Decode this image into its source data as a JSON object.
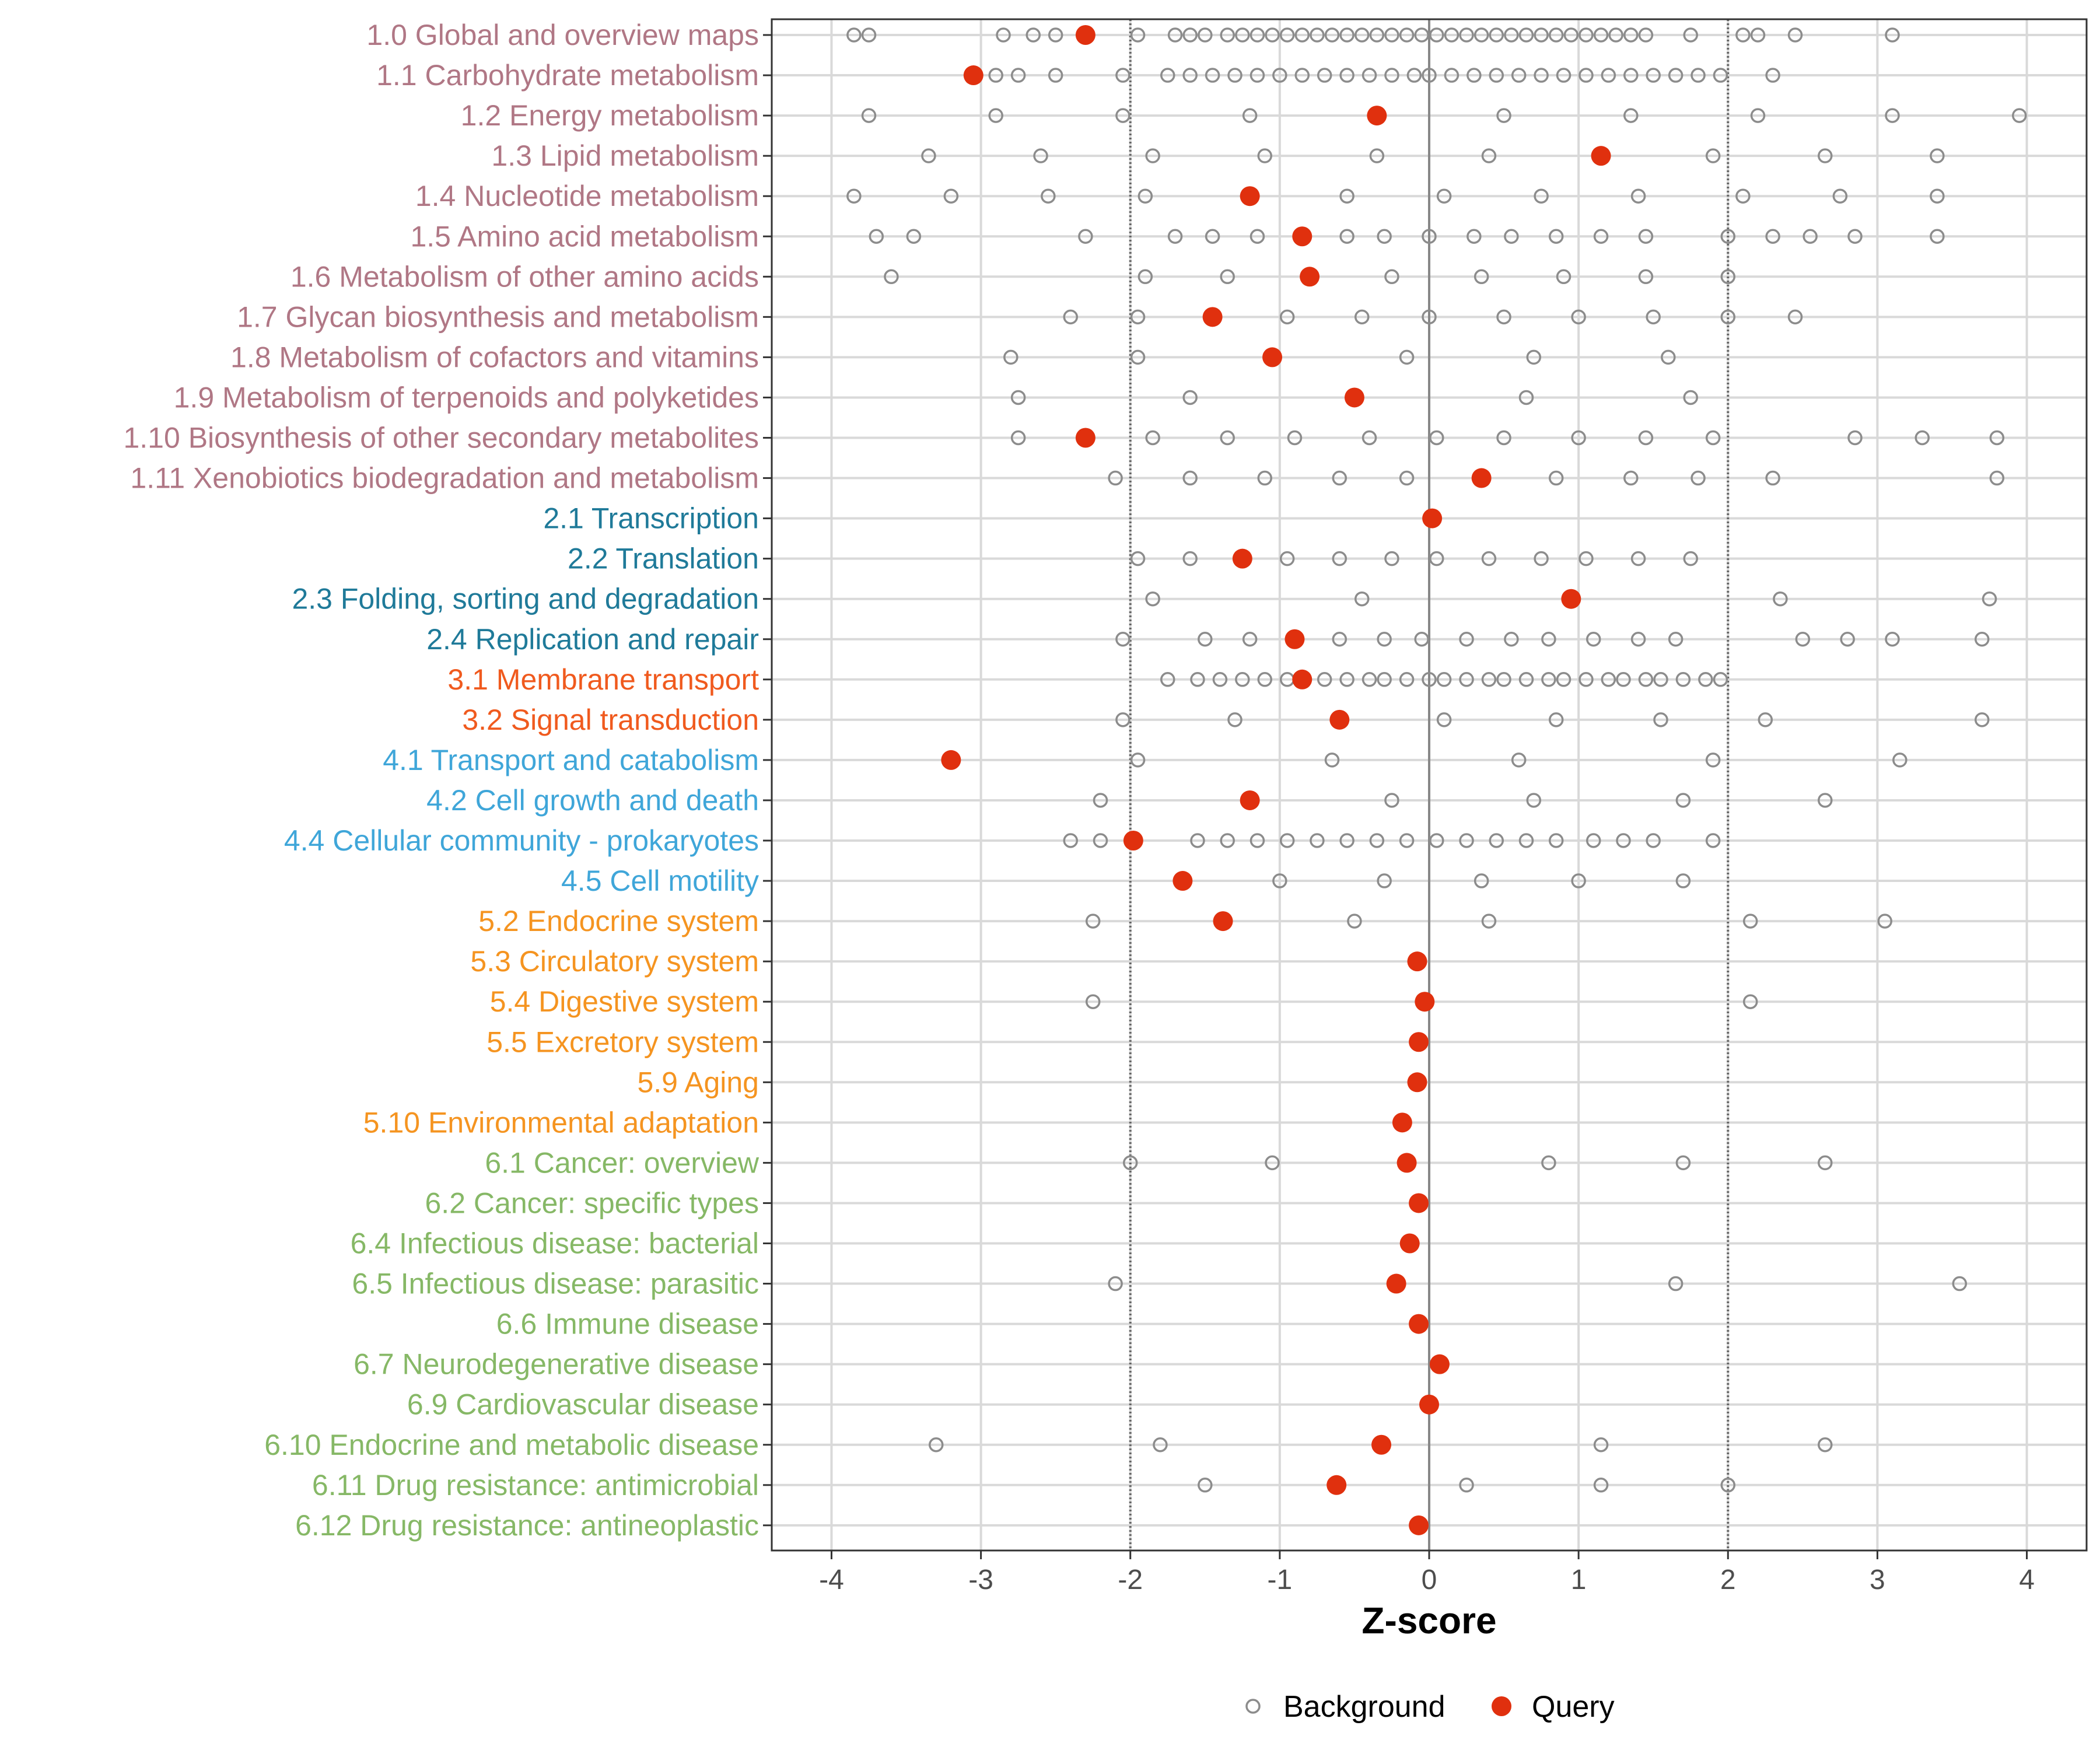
{
  "chart_data": {
    "type": "scatter",
    "xlabel": "Z-score",
    "xlim": [
      -4.4,
      4.4
    ],
    "x_ticks": [
      "-4",
      "-3",
      "-2",
      "-1",
      "0",
      "1",
      "2",
      "3",
      "4"
    ],
    "reference_lines": [
      -2,
      0,
      2
    ],
    "grid": true,
    "legend": {
      "position": "bottom",
      "entries": [
        {
          "name": "Background",
          "marker": "open-circle",
          "color": "#8c8c8c"
        },
        {
          "name": "Query",
          "marker": "filled-circle",
          "color": "#e0300e"
        }
      ]
    },
    "group_colors": {
      "1": "#b07785",
      "2": "#1f7a99",
      "3": "#f05a1e",
      "4": "#3fa6d9",
      "5": "#f59420",
      "6": "#86b866"
    },
    "categories": [
      {
        "label": "1.0 Global and overview maps",
        "group": "1",
        "query": -2.3,
        "background": [
          -3.85,
          -3.75,
          -2.85,
          -2.65,
          -2.5,
          -2.3,
          -1.95,
          -1.7,
          -1.6,
          -1.5,
          -1.35,
          -1.25,
          -1.15,
          -1.05,
          -0.95,
          -0.85,
          -0.75,
          -0.65,
          -0.55,
          -0.45,
          -0.35,
          -0.25,
          -0.15,
          -0.05,
          0.05,
          0.15,
          0.25,
          0.35,
          0.45,
          0.55,
          0.65,
          0.75,
          0.85,
          0.95,
          1.05,
          1.15,
          1.25,
          1.35,
          1.45,
          1.75,
          2.1,
          2.2,
          2.45,
          3.1
        ]
      },
      {
        "label": "1.1 Carbohydrate metabolism",
        "group": "1",
        "query": -3.05,
        "background": [
          -2.9,
          -2.75,
          -2.5,
          -2.05,
          -1.75,
          -1.6,
          -1.45,
          -1.3,
          -1.15,
          -1.0,
          -0.85,
          -0.7,
          -0.55,
          -0.4,
          -0.25,
          -0.1,
          0.0,
          0.15,
          0.3,
          0.45,
          0.6,
          0.75,
          0.9,
          1.05,
          1.2,
          1.35,
          1.5,
          1.65,
          1.8,
          1.95,
          2.3
        ]
      },
      {
        "label": "1.2 Energy metabolism",
        "group": "1",
        "query": -0.35,
        "background": [
          -3.75,
          -2.9,
          -2.05,
          -1.2,
          0.5,
          1.35,
          2.2,
          3.1,
          3.95
        ]
      },
      {
        "label": "1.3 Lipid metabolism",
        "group": "1",
        "query": 1.15,
        "background": [
          -3.35,
          -2.6,
          -1.85,
          -1.1,
          -0.35,
          0.4,
          1.9,
          2.65,
          3.4
        ]
      },
      {
        "label": "1.4 Nucleotide metabolism",
        "group": "1",
        "query": -1.2,
        "background": [
          -3.85,
          -3.2,
          -2.55,
          -1.9,
          -0.55,
          0.1,
          0.75,
          1.4,
          2.1,
          2.75,
          3.4
        ]
      },
      {
        "label": "1.5 Amino acid metabolism",
        "group": "1",
        "query": -0.85,
        "background": [
          -3.7,
          -3.45,
          -2.3,
          -1.7,
          -1.45,
          -1.15,
          -0.55,
          -0.3,
          0.0,
          0.3,
          0.55,
          0.85,
          1.15,
          1.45,
          2.0,
          2.3,
          2.55,
          2.85,
          3.4
        ]
      },
      {
        "label": "1.6 Metabolism of other amino acids",
        "group": "1",
        "query": -0.8,
        "background": [
          -3.6,
          -1.9,
          -1.35,
          -0.25,
          0.35,
          0.9,
          1.45,
          2.0
        ]
      },
      {
        "label": "1.7 Glycan biosynthesis and metabolism",
        "group": "1",
        "query": -1.45,
        "background": [
          -2.4,
          -1.95,
          -0.95,
          -0.45,
          0.0,
          0.5,
          1.0,
          1.5,
          2.0,
          2.45
        ]
      },
      {
        "label": "1.8 Metabolism of cofactors and vitamins",
        "group": "1",
        "query": -1.05,
        "background": [
          -2.8,
          -1.95,
          -0.15,
          0.7,
          1.6
        ]
      },
      {
        "label": "1.9 Metabolism of terpenoids and polyketides",
        "group": "1",
        "query": -0.5,
        "background": [
          -2.75,
          -1.6,
          0.65,
          1.75
        ]
      },
      {
        "label": "1.10 Biosynthesis of other secondary metabolites",
        "group": "1",
        "query": -2.3,
        "background": [
          -2.75,
          -1.85,
          -1.35,
          -0.9,
          -0.4,
          0.05,
          0.5,
          1.0,
          1.45,
          1.9,
          2.85,
          3.3,
          3.8
        ]
      },
      {
        "label": "1.11 Xenobiotics biodegradation and metabolism",
        "group": "1",
        "query": 0.35,
        "background": [
          -2.1,
          -1.6,
          -1.1,
          -0.6,
          -0.15,
          0.85,
          1.35,
          1.8,
          2.3,
          3.8
        ]
      },
      {
        "label": "2.1 Transcription",
        "group": "2",
        "query": 0.02,
        "background": []
      },
      {
        "label": "2.2 Translation",
        "group": "2",
        "query": -1.25,
        "background": [
          -1.95,
          -1.6,
          -0.95,
          -0.6,
          -0.25,
          0.05,
          0.4,
          0.75,
          1.05,
          1.4,
          1.75
        ]
      },
      {
        "label": "2.3 Folding, sorting and degradation",
        "group": "2",
        "query": 0.95,
        "background": [
          -1.85,
          -0.45,
          2.35,
          3.75
        ]
      },
      {
        "label": "2.4 Replication and repair",
        "group": "2",
        "query": -0.9,
        "background": [
          -2.05,
          -1.5,
          -1.2,
          -0.6,
          -0.3,
          -0.05,
          0.25,
          0.55,
          0.8,
          1.1,
          1.4,
          1.65,
          2.5,
          2.8,
          3.1,
          3.7
        ]
      },
      {
        "label": "3.1 Membrane transport",
        "group": "3",
        "query": -0.85,
        "background": [
          -1.75,
          -1.55,
          -1.4,
          -1.25,
          -1.1,
          -0.95,
          -0.7,
          -0.55,
          -0.4,
          -0.3,
          -0.15,
          0.0,
          0.1,
          0.25,
          0.4,
          0.5,
          0.65,
          0.8,
          0.9,
          1.05,
          1.2,
          1.3,
          1.45,
          1.55,
          1.7,
          1.85,
          1.95
        ]
      },
      {
        "label": "3.2 Signal transduction",
        "group": "3",
        "query": -0.6,
        "background": [
          -2.05,
          -1.3,
          0.1,
          0.85,
          1.55,
          2.25,
          3.7
        ]
      },
      {
        "label": "4.1 Transport and catabolism",
        "group": "4",
        "query": -3.2,
        "background": [
          -1.95,
          -0.65,
          0.6,
          1.9,
          3.15
        ]
      },
      {
        "label": "4.2 Cell growth and death",
        "group": "4",
        "query": -1.2,
        "background": [
          -2.2,
          -0.25,
          0.7,
          1.7,
          2.65
        ]
      },
      {
        "label": "4.4 Cellular community - prokaryotes",
        "group": "4",
        "query": -1.98,
        "background": [
          -2.4,
          -2.2,
          -1.55,
          -1.35,
          -1.15,
          -0.95,
          -0.75,
          -0.55,
          -0.35,
          -0.15,
          0.05,
          0.25,
          0.45,
          0.65,
          0.85,
          1.1,
          1.3,
          1.5,
          1.9
        ]
      },
      {
        "label": "4.5 Cell motility",
        "group": "4",
        "query": -1.65,
        "background": [
          -1.0,
          -0.3,
          0.35,
          1.0,
          1.7
        ]
      },
      {
        "label": "5.2 Endocrine system",
        "group": "5",
        "query": -1.38,
        "background": [
          -2.25,
          -0.5,
          0.4,
          2.15,
          3.05
        ]
      },
      {
        "label": "5.3 Circulatory system",
        "group": "5",
        "query": -0.08,
        "background": []
      },
      {
        "label": "5.4 Digestive system",
        "group": "5",
        "query": -0.03,
        "background": [
          -2.25,
          2.15
        ]
      },
      {
        "label": "5.5 Excretory system",
        "group": "5",
        "query": -0.07,
        "background": []
      },
      {
        "label": "5.9 Aging",
        "group": "5",
        "query": -0.08,
        "background": []
      },
      {
        "label": "5.10 Environmental adaptation",
        "group": "5",
        "query": -0.18,
        "background": []
      },
      {
        "label": "6.1 Cancer: overview",
        "group": "6",
        "query": -0.15,
        "background": [
          -2.0,
          -1.05,
          0.8,
          1.7,
          2.65
        ]
      },
      {
        "label": "6.2 Cancer: specific types",
        "group": "6",
        "query": -0.07,
        "background": []
      },
      {
        "label": "6.4 Infectious disease: bacterial",
        "group": "6",
        "query": -0.13,
        "background": []
      },
      {
        "label": "6.5 Infectious disease: parasitic",
        "group": "6",
        "query": -0.22,
        "background": [
          -2.1,
          1.65,
          3.55
        ]
      },
      {
        "label": "6.6 Immune disease",
        "group": "6",
        "query": -0.07,
        "background": []
      },
      {
        "label": "6.7 Neurodegenerative disease",
        "group": "6",
        "query": 0.07,
        "background": []
      },
      {
        "label": "6.9 Cardiovascular disease",
        "group": "6",
        "query": 0.0,
        "background": []
      },
      {
        "label": "6.10 Endocrine and metabolic disease",
        "group": "6",
        "query": -0.32,
        "background": [
          -3.3,
          -1.8,
          1.15,
          2.65
        ]
      },
      {
        "label": "6.11 Drug resistance: antimicrobial",
        "group": "6",
        "query": -0.62,
        "background": [
          -1.5,
          0.25,
          1.15,
          2.0
        ]
      },
      {
        "label": "6.12 Drug resistance: antineoplastic",
        "group": "6",
        "query": -0.07,
        "background": []
      }
    ]
  }
}
